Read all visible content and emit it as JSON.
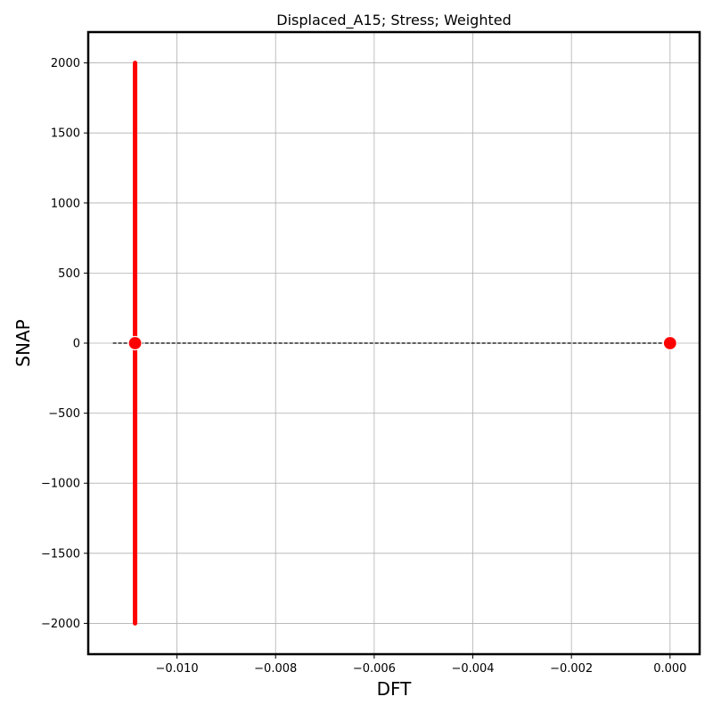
{
  "chart_data": {
    "type": "scatter",
    "title": "Displaced_A15; Stress; Weighted",
    "xlabel": "DFT",
    "ylabel": "SNAP",
    "xlim": [
      -0.0118,
      0.0006
    ],
    "ylim": [
      -2220,
      2220
    ],
    "grid": true,
    "x_ticks": [
      -0.01,
      -0.008,
      -0.006,
      -0.004,
      -0.002,
      0.0
    ],
    "x_tick_labels": [
      "−0.010",
      "−0.008",
      "−0.006",
      "−0.004",
      "−0.002",
      "0.000"
    ],
    "y_ticks": [
      2000,
      1500,
      1000,
      500,
      0,
      -500,
      -1000,
      -1500,
      -2000
    ],
    "y_tick_labels": [
      "2000",
      "1500",
      "1000",
      "500",
      "0",
      "−500",
      "−1000",
      "−1500",
      "−2000"
    ],
    "points": [
      {
        "x": -0.01085,
        "y": 0
      },
      {
        "x": 0.0,
        "y": 0
      }
    ],
    "vertical_bar": {
      "x": -0.01085,
      "y_min": -2000,
      "y_max": 2000,
      "color": "#ff0000"
    },
    "reference_line": {
      "x_start": -0.0113,
      "x_end": 0.0,
      "y": 0,
      "style": "dashed"
    },
    "point_color": "#ff0000"
  }
}
